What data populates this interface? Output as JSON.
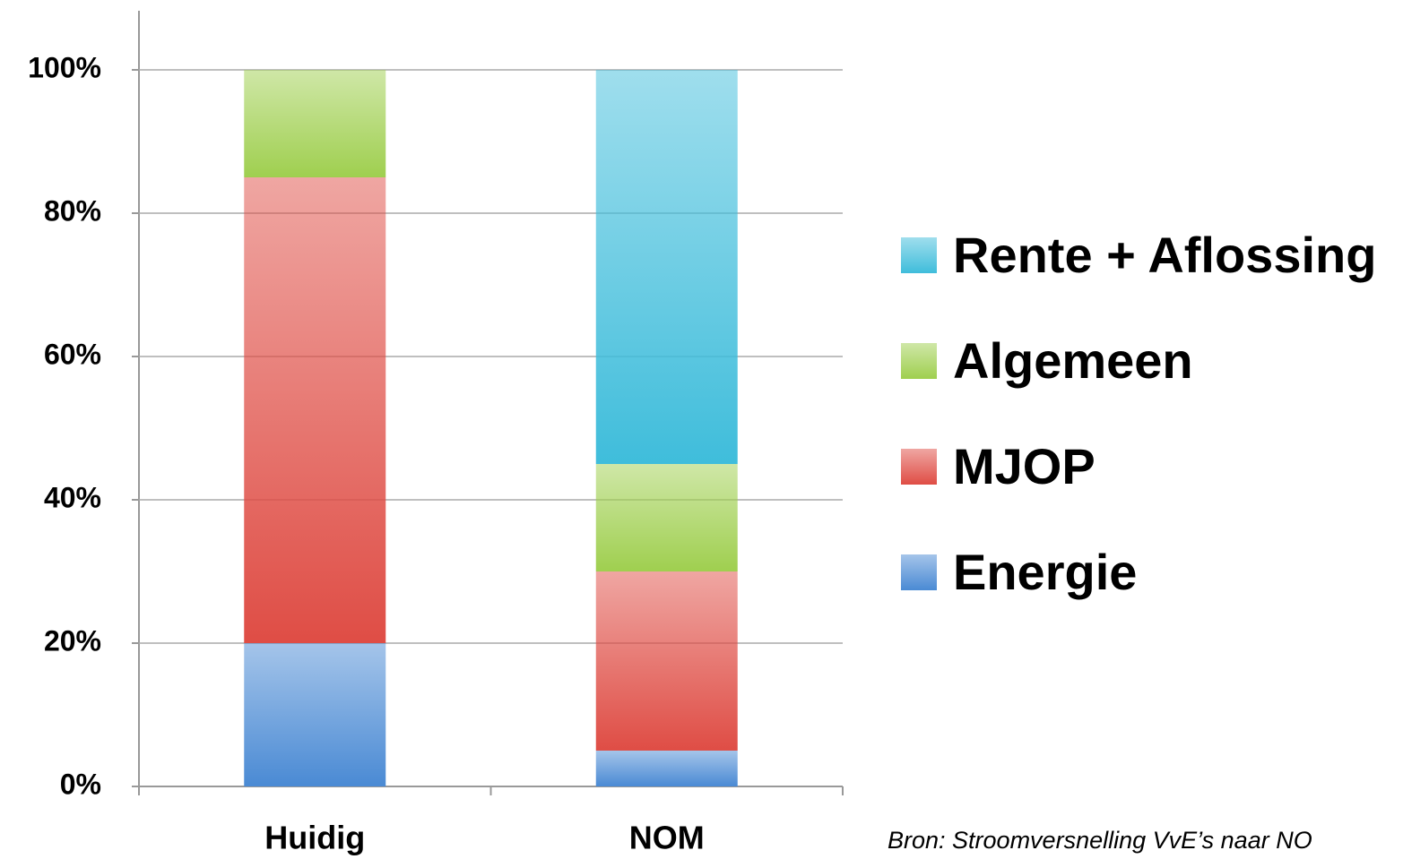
{
  "chart_data": {
    "type": "stacked_bar",
    "categories": [
      "Huidig",
      "NOM"
    ],
    "series": [
      {
        "name": "Energie",
        "color": "#4a8ad4",
        "values": [
          20,
          5
        ]
      },
      {
        "name": "MJOP",
        "color": "#df4d45",
        "values": [
          65,
          25
        ]
      },
      {
        "name": "Algemeen",
        "color": "#9fcf4f",
        "values": [
          15,
          15
        ]
      },
      {
        "name": "Rente + Aflossing",
        "color": "#3fbddb",
        "values": [
          0,
          55
        ]
      }
    ],
    "ylim": [
      0,
      100
    ],
    "yticks": [
      {
        "value": 0,
        "label": "0%"
      },
      {
        "value": 20,
        "label": "20%"
      },
      {
        "value": 40,
        "label": "40%"
      },
      {
        "value": 60,
        "label": "60%"
      },
      {
        "value": 80,
        "label": "80%"
      },
      {
        "value": 100,
        "label": "100%"
      }
    ],
    "grid": true,
    "legend": "right",
    "annotation": "Bron: Stroomversnelling VvE’s naar NO"
  }
}
